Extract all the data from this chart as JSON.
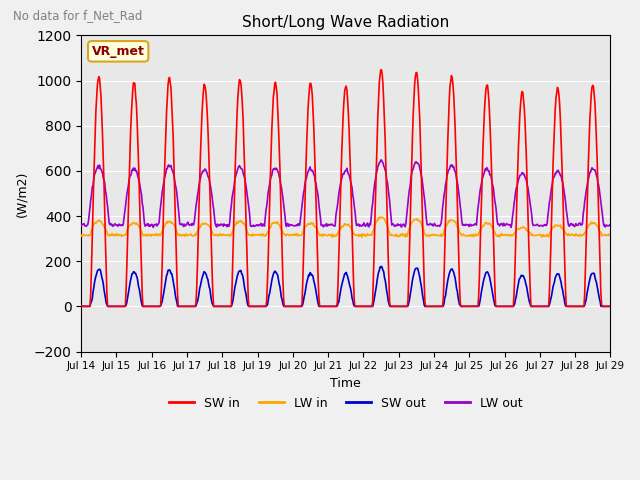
{
  "title": "Short/Long Wave Radiation",
  "subtitle": "No data for f_Net_Rad",
  "xlabel": "Time",
  "ylabel": "(W/m2)",
  "ylim": [
    -200,
    1200
  ],
  "yticks": [
    -200,
    0,
    200,
    400,
    600,
    800,
    1000,
    1200
  ],
  "xlim_start": 0,
  "xlim_end": 15,
  "xtick_labels": [
    "Jul 14",
    "Jul 15",
    "Jul 16",
    "Jul 17",
    "Jul 18",
    "Jul 19",
    "Jul 20",
    "Jul 21",
    "Jul 22",
    "Jul 23",
    "Jul 24",
    "Jul 25",
    "Jul 26",
    "Jul 27",
    "Jul 28",
    "Jul 29"
  ],
  "legend_station": "VR_met",
  "colors": {
    "SW_in": "#ff0000",
    "LW_in": "#ffa500",
    "SW_out": "#0000cc",
    "LW_out": "#9900cc"
  },
  "background_plot": "#e8e8e8",
  "background_fig": "#f0f0f0",
  "SW_in_peak": 1020,
  "LW_in_base": 320,
  "LW_in_peak": 390,
  "SW_out_peak": 170,
  "LW_out_base": 370,
  "LW_out_peak": 640
}
